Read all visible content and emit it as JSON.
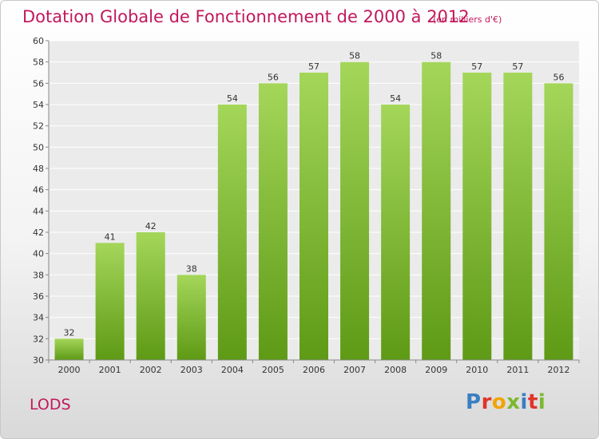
{
  "header": {
    "title": "Dotation Globale de Fonctionnement de 2000 à 2012",
    "unit": "(en milliers d'€)"
  },
  "footer": {
    "commune": "LODS",
    "logo_letters": [
      {
        "char": "P",
        "color": "#3a7fc1"
      },
      {
        "char": "r",
        "color": "#e0342b"
      },
      {
        "char": "o",
        "color": "#f2a400"
      },
      {
        "char": "x",
        "color": "#7cb82f"
      },
      {
        "char": "i",
        "color": "#3a7fc1"
      },
      {
        "char": "t",
        "color": "#e0342b"
      },
      {
        "char": "i",
        "color": "#7cb82f"
      }
    ]
  },
  "chart_data": {
    "type": "bar",
    "title": "Dotation Globale de Fonctionnement de 2000 à 2012",
    "subtitle": "(en milliers d'€)",
    "categories": [
      "2000",
      "2001",
      "2002",
      "2003",
      "2004",
      "2005",
      "2006",
      "2007",
      "2008",
      "2009",
      "2010",
      "2011",
      "2012"
    ],
    "values": [
      32,
      41,
      42,
      38,
      54,
      56,
      57,
      58,
      54,
      58,
      57,
      57,
      56
    ],
    "ylim": [
      30,
      60
    ],
    "yticks": [
      30,
      32,
      34,
      36,
      38,
      40,
      42,
      44,
      46,
      48,
      50,
      52,
      54,
      56,
      58,
      60
    ],
    "grid": true,
    "bar_color_top": "#a4d65a",
    "bar_color_bottom": "#5e9a15"
  }
}
